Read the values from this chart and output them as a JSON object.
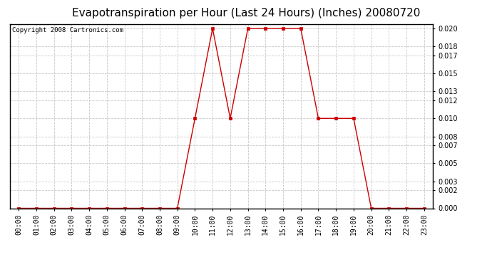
{
  "title": "Evapotranspiration per Hour (Last 24 Hours) (Inches) 20080720",
  "copyright": "Copyright 2008 Cartronics.com",
  "hours": [
    "00:00",
    "01:00",
    "02:00",
    "03:00",
    "04:00",
    "05:00",
    "06:00",
    "07:00",
    "08:00",
    "09:00",
    "10:00",
    "11:00",
    "12:00",
    "13:00",
    "14:00",
    "15:00",
    "16:00",
    "17:00",
    "18:00",
    "19:00",
    "20:00",
    "21:00",
    "22:00",
    "23:00"
  ],
  "values": [
    0.0,
    0.0,
    0.0,
    0.0,
    0.0,
    0.0,
    0.0,
    0.0,
    0.0,
    0.0,
    0.01,
    0.02,
    0.01,
    0.02,
    0.02,
    0.02,
    0.02,
    0.01,
    0.01,
    0.01,
    0.0,
    0.0,
    0.0,
    0.0
  ],
  "line_color": "#cc0000",
  "marker": "s",
  "marker_size": 2.5,
  "bg_color": "#ffffff",
  "plot_bg_color": "#ffffff",
  "grid_color": "#c8c8c8",
  "grid_style": "--",
  "ylim": [
    0.0,
    0.0205
  ],
  "yticks": [
    0.0,
    0.002,
    0.003,
    0.005,
    0.007,
    0.008,
    0.01,
    0.012,
    0.013,
    0.015,
    0.017,
    0.018,
    0.02
  ],
  "title_fontsize": 11,
  "copyright_fontsize": 6.5,
  "tick_fontsize": 7,
  "linewidth": 1.0
}
